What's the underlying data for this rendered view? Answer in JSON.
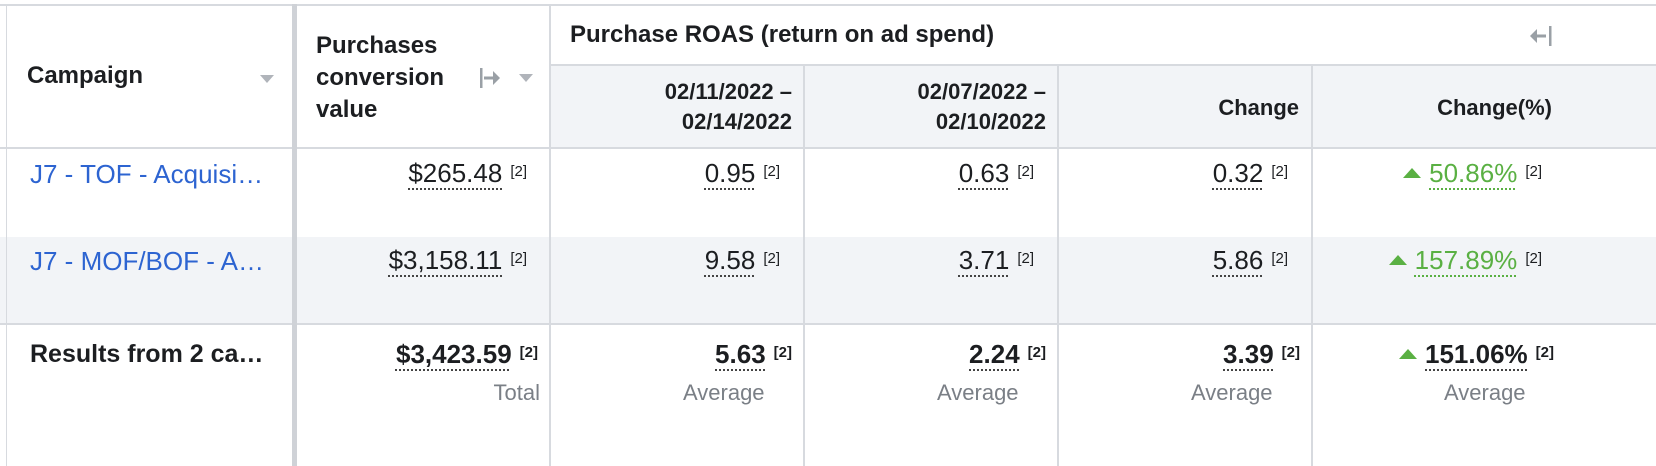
{
  "header": {
    "campaign": "Campaign",
    "purchases_value": "Purchases conversion value",
    "roas_group": "Purchase ROAS (return on ad spend)",
    "period1": "02/11/2022 –\n02/14/2022",
    "period2": "02/07/2022 –\n02/10/2022",
    "change": "Change",
    "change_pct": "Change(%)"
  },
  "rows": [
    {
      "campaign": "J7 - TOF - Acquisi…",
      "purchases_value": "$265.48",
      "p1": "0.95",
      "p2": "0.63",
      "change": "0.32",
      "change_pct": "50.86%"
    },
    {
      "campaign": "J7 - MOF/BOF - A…",
      "purchases_value": "$3,158.11",
      "p1": "9.58",
      "p2": "3.71",
      "change": "5.86",
      "change_pct": "157.89%"
    }
  ],
  "totals": {
    "campaign": "Results from 2 ca…",
    "purchases_value": "$3,423.59",
    "purchases_sub": "Total",
    "p1": "5.63",
    "p1_sub": "Average",
    "p2": "2.24",
    "p2_sub": "Average",
    "change": "3.39",
    "change_sub": "Average",
    "change_pct": "151.06%",
    "change_pct_sub": "Average"
  },
  "footnote": "[2]",
  "colors": {
    "link": "#2d64d1",
    "positive": "#5ab043",
    "row_alt": "#f2f4f7",
    "border": "#d7dadf"
  },
  "icons": {
    "sort": "caret-down-icon",
    "move_column": "arrow-to-line-icon",
    "collapse_group": "collapse-left-icon",
    "increase": "triangle-up-icon"
  }
}
